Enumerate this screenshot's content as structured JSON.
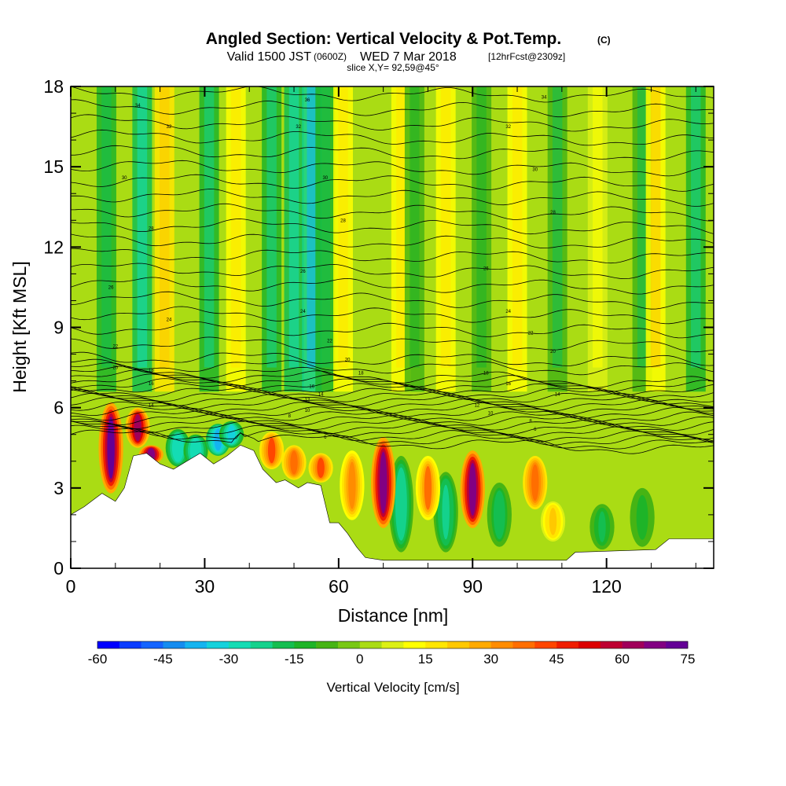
{
  "header": {
    "title": "Angled Section: Vertical Velocity & Pot.Temp.",
    "title_unit": "(C)",
    "valid_label": "Valid 1500 JST",
    "valid_zulu": "(0600Z)",
    "valid_date": "WED 7 Mar 2018",
    "forecast": "[12hrFcst@2309z]",
    "slice": "slice X,Y= 92,59@45°"
  },
  "chart_data": {
    "type": "heatmap",
    "xlabel": "Distance [nm]",
    "ylabel": "Height [Kft MSL]",
    "xlim": [
      0,
      144
    ],
    "ylim": [
      0,
      18
    ],
    "x_ticks": [
      "0",
      "30",
      "60",
      "90",
      "120"
    ],
    "y_ticks": [
      "0",
      "3",
      "6",
      "9",
      "12",
      "15",
      "18"
    ],
    "colorbar": {
      "label": "Vertical Velocity [cm/s]",
      "range": [
        -60,
        75
      ],
      "ticks": [
        "-60",
        "-45",
        "-30",
        "-15",
        "0",
        "15",
        "30",
        "45",
        "60",
        "75"
      ],
      "colors": [
        "#0000ff",
        "#0a3cff",
        "#1464ff",
        "#148cf0",
        "#14b4f0",
        "#14d2dc",
        "#14dcb4",
        "#14d28c",
        "#14be50",
        "#1eb428",
        "#46b414",
        "#78c814",
        "#aadc14",
        "#dcf014",
        "#ffff00",
        "#ffe600",
        "#ffc800",
        "#ffaa00",
        "#ff8c00",
        "#ff6e00",
        "#ff4600",
        "#f01e00",
        "#dc0000",
        "#be0032",
        "#a0005a",
        "#820082",
        "#640096"
      ]
    },
    "terrain_kft": [
      [
        0,
        2.0
      ],
      [
        3,
        2.3
      ],
      [
        7,
        2.8
      ],
      [
        10,
        2.5
      ],
      [
        12,
        3.0
      ],
      [
        14,
        4.2
      ],
      [
        17,
        4.3
      ],
      [
        20,
        3.9
      ],
      [
        23,
        3.7
      ],
      [
        26,
        4.0
      ],
      [
        29,
        4.3
      ],
      [
        32,
        3.9
      ],
      [
        35,
        4.2
      ],
      [
        38,
        4.6
      ],
      [
        41,
        4.4
      ],
      [
        43,
        3.7
      ],
      [
        46,
        3.2
      ],
      [
        48,
        3.3
      ],
      [
        51,
        3.0
      ],
      [
        53,
        3.2
      ],
      [
        56,
        3.1
      ],
      [
        58,
        1.7
      ],
      [
        60,
        1.7
      ],
      [
        62,
        1.3
      ],
      [
        64,
        0.8
      ],
      [
        66,
        0.4
      ],
      [
        70,
        0.3
      ],
      [
        90,
        0.3
      ],
      [
        100,
        0.3
      ],
      [
        111,
        0.3
      ],
      [
        113,
        0.6
      ],
      [
        131,
        0.7
      ],
      [
        134,
        1.1
      ],
      [
        144,
        1.1
      ]
    ],
    "updraft_cells": [
      {
        "x": 9,
        "z_min": 2.8,
        "z_max": 6.2,
        "w": 70
      },
      {
        "x": 15,
        "z_min": 4.5,
        "z_max": 6.0,
        "w": 62
      },
      {
        "x": 18,
        "z_min": 3.9,
        "z_max": 4.6,
        "w": 68
      },
      {
        "x": 45,
        "z_min": 3.7,
        "z_max": 5.1,
        "w": 40
      },
      {
        "x": 50,
        "z_min": 3.3,
        "z_max": 4.6,
        "w": 38
      },
      {
        "x": 56,
        "z_min": 3.2,
        "z_max": 4.3,
        "w": 40
      },
      {
        "x": 63,
        "z_min": 1.8,
        "z_max": 4.4,
        "w": 32
      },
      {
        "x": 70,
        "z_min": 1.5,
        "z_max": 4.9,
        "w": 66
      },
      {
        "x": 80,
        "z_min": 1.8,
        "z_max": 4.2,
        "w": 35
      },
      {
        "x": 90,
        "z_min": 1.5,
        "z_max": 4.4,
        "w": 66
      },
      {
        "x": 104,
        "z_min": 2.2,
        "z_max": 4.2,
        "w": 38
      },
      {
        "x": 108,
        "z_min": 1.0,
        "z_max": 2.5,
        "w": 22
      }
    ],
    "downdraft_cells": [
      {
        "x": 24,
        "z_min": 3.8,
        "z_max": 5.2,
        "w": -30
      },
      {
        "x": 28,
        "z_min": 3.8,
        "z_max": 5.0,
        "w": -30
      },
      {
        "x": 33,
        "z_min": 4.2,
        "z_max": 5.4,
        "w": -40
      },
      {
        "x": 36,
        "z_min": 4.5,
        "z_max": 5.5,
        "w": -35
      },
      {
        "x": 74,
        "z_min": 0.6,
        "z_max": 4.2,
        "w": -25
      },
      {
        "x": 84,
        "z_min": 0.6,
        "z_max": 3.6,
        "w": -22
      },
      {
        "x": 96,
        "z_min": 0.8,
        "z_max": 3.2,
        "w": -18
      },
      {
        "x": 119,
        "z_min": 0.7,
        "z_max": 2.4,
        "w": -16
      },
      {
        "x": 128,
        "z_min": 0.8,
        "z_max": 3.0,
        "w": -14
      }
    ],
    "upper_bands": [
      {
        "x": 8,
        "w": -12
      },
      {
        "x": 16,
        "w": -18
      },
      {
        "x": 21,
        "w": 15
      },
      {
        "x": 31,
        "w": -15
      },
      {
        "x": 37,
        "w": 10
      },
      {
        "x": 45,
        "w": -15
      },
      {
        "x": 50,
        "w": -18
      },
      {
        "x": 54,
        "w": -25
      },
      {
        "x": 57,
        "w": -12
      },
      {
        "x": 61,
        "w": 10
      },
      {
        "x": 74,
        "w": 12
      },
      {
        "x": 77,
        "w": -8
      },
      {
        "x": 84,
        "w": 12
      },
      {
        "x": 92,
        "w": -8
      },
      {
        "x": 100,
        "w": 10
      },
      {
        "x": 109,
        "w": -10
      },
      {
        "x": 118,
        "w": 8
      },
      {
        "x": 128,
        "w": -10
      },
      {
        "x": 131,
        "w": 14
      },
      {
        "x": 140,
        "w": -14
      }
    ],
    "isentrope_labels": [
      {
        "x": 15,
        "z": 17.3,
        "text": "34"
      },
      {
        "x": 53,
        "z": 17.5,
        "text": "36"
      },
      {
        "x": 106,
        "z": 17.6,
        "text": "34"
      },
      {
        "x": 22,
        "z": 16.5,
        "text": "32"
      },
      {
        "x": 51,
        "z": 16.5,
        "text": "32"
      },
      {
        "x": 98,
        "z": 16.5,
        "text": "32"
      },
      {
        "x": 12,
        "z": 14.6,
        "text": "30"
      },
      {
        "x": 57,
        "z": 14.6,
        "text": "30"
      },
      {
        "x": 104,
        "z": 14.9,
        "text": "30"
      },
      {
        "x": 18,
        "z": 12.7,
        "text": "28"
      },
      {
        "x": 61,
        "z": 13.0,
        "text": "28"
      },
      {
        "x": 108,
        "z": 13.3,
        "text": "28"
      },
      {
        "x": 9,
        "z": 10.5,
        "text": "26"
      },
      {
        "x": 52,
        "z": 11.1,
        "text": "26"
      },
      {
        "x": 93,
        "z": 11.2,
        "text": "26"
      },
      {
        "x": 22,
        "z": 9.3,
        "text": "24"
      },
      {
        "x": 52,
        "z": 9.6,
        "text": "24"
      },
      {
        "x": 98,
        "z": 9.6,
        "text": "24"
      },
      {
        "x": 10,
        "z": 8.3,
        "text": "22"
      },
      {
        "x": 58,
        "z": 8.5,
        "text": "22"
      },
      {
        "x": 103,
        "z": 8.8,
        "text": "22"
      },
      {
        "x": 10,
        "z": 7.5,
        "text": "20"
      },
      {
        "x": 62,
        "z": 7.8,
        "text": "20"
      },
      {
        "x": 108,
        "z": 8.1,
        "text": "20"
      },
      {
        "x": 18,
        "z": 7.4,
        "text": "18"
      },
      {
        "x": 65,
        "z": 7.3,
        "text": "18"
      },
      {
        "x": 93,
        "z": 7.3,
        "text": "18"
      },
      {
        "x": 18,
        "z": 6.9,
        "text": "16"
      },
      {
        "x": 54,
        "z": 6.8,
        "text": "16"
      },
      {
        "x": 98,
        "z": 6.9,
        "text": "16"
      },
      {
        "x": 18,
        "z": 6.1,
        "text": "14"
      },
      {
        "x": 56,
        "z": 6.5,
        "text": "14"
      },
      {
        "x": 109,
        "z": 6.5,
        "text": "14"
      },
      {
        "x": 53,
        "z": 6.3,
        "text": "12"
      },
      {
        "x": 91,
        "z": 6.1,
        "text": "12"
      },
      {
        "x": 53,
        "z": 5.9,
        "text": "10"
      },
      {
        "x": 94,
        "z": 5.8,
        "text": "10"
      },
      {
        "x": 49,
        "z": 5.7,
        "text": "8"
      },
      {
        "x": 103,
        "z": 5.5,
        "text": "8"
      },
      {
        "x": 57,
        "z": 4.9,
        "text": "6"
      },
      {
        "x": 104,
        "z": 5.2,
        "text": "6"
      }
    ]
  }
}
